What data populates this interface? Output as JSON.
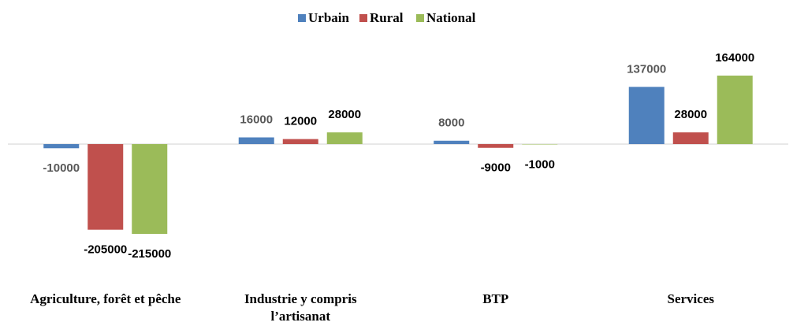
{
  "chart_data": {
    "type": "bar",
    "categories": [
      "Agriculture, forêt et pêche",
      "Industrie y compris l’artisanat",
      "BTP",
      "Services"
    ],
    "series": [
      {
        "name": "Urbain",
        "color": "#4f81bd",
        "label_color": "#595959",
        "values": [
          -10000,
          16000,
          8000,
          137000
        ]
      },
      {
        "name": "Rural",
        "color": "#c0504d",
        "label_color": "#000000",
        "values": [
          -205000,
          12000,
          -9000,
          28000
        ]
      },
      {
        "name": "National",
        "color": "#9bbb59",
        "label_color": "#000000",
        "values": [
          -215000,
          28000,
          -1000,
          164000
        ]
      }
    ],
    "legend": "top"
  }
}
